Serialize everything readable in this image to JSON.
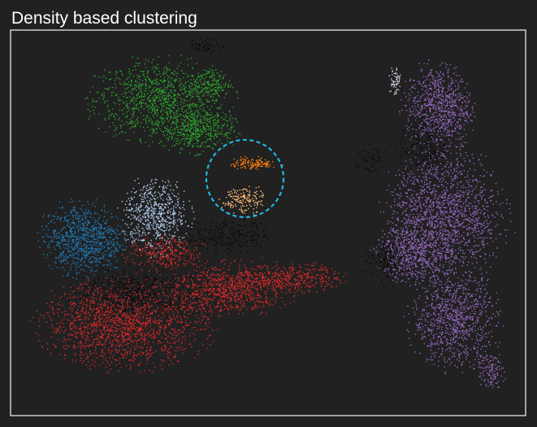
{
  "title": "Density based clustering",
  "colors": {
    "background": "#212121",
    "frame": "#e8e8e8",
    "highlight_circle": "#1fb7e0",
    "noise": "#0a0a0a"
  },
  "chart_data": {
    "type": "scatter",
    "title": "Density based clustering",
    "xlabel": "",
    "ylabel": "",
    "axes_ticks": false,
    "grid": false,
    "legend": "none",
    "noise_color": "#0a0a0a",
    "series": [
      {
        "color": "#2ca02c",
        "blobs": [
          {
            "cx": 0.29,
            "cy": 0.82,
            "rx": 0.14,
            "ry": 0.11,
            "n": 1100
          },
          {
            "cx": 0.36,
            "cy": 0.74,
            "rx": 0.08,
            "ry": 0.06,
            "n": 450
          },
          {
            "cx": 0.39,
            "cy": 0.86,
            "rx": 0.04,
            "ry": 0.04,
            "n": 150
          }
        ]
      },
      {
        "color": "#1f77b4",
        "blobs": [
          {
            "cx": 0.14,
            "cy": 0.46,
            "rx": 0.085,
            "ry": 0.1,
            "n": 900
          }
        ]
      },
      {
        "color": "#aec7e8",
        "blobs": [
          {
            "cx": 0.28,
            "cy": 0.52,
            "rx": 0.07,
            "ry": 0.1,
            "n": 650
          }
        ]
      },
      {
        "color": "#ff7f0e",
        "blobs": [
          {
            "cx": 0.47,
            "cy": 0.655,
            "rx": 0.05,
            "ry": 0.018,
            "n": 130
          }
        ]
      },
      {
        "color": "#ffbb78",
        "blobs": [
          {
            "cx": 0.45,
            "cy": 0.56,
            "rx": 0.045,
            "ry": 0.04,
            "n": 170
          }
        ]
      },
      {
        "color": "#d62728",
        "blobs": [
          {
            "cx": 0.22,
            "cy": 0.24,
            "rx": 0.17,
            "ry": 0.12,
            "n": 1700
          },
          {
            "cx": 0.42,
            "cy": 0.33,
            "rx": 0.13,
            "ry": 0.07,
            "n": 850
          },
          {
            "cx": 0.55,
            "cy": 0.36,
            "rx": 0.1,
            "ry": 0.04,
            "n": 350
          },
          {
            "cx": 0.3,
            "cy": 0.42,
            "rx": 0.08,
            "ry": 0.05,
            "n": 300
          }
        ]
      },
      {
        "color": "#9467bd",
        "blobs": [
          {
            "cx": 0.83,
            "cy": 0.8,
            "rx": 0.07,
            "ry": 0.12,
            "n": 800
          },
          {
            "cx": 0.84,
            "cy": 0.52,
            "rx": 0.12,
            "ry": 0.18,
            "n": 1600
          },
          {
            "cx": 0.86,
            "cy": 0.25,
            "rx": 0.09,
            "ry": 0.13,
            "n": 900
          },
          {
            "cx": 0.78,
            "cy": 0.42,
            "rx": 0.08,
            "ry": 0.08,
            "n": 500
          },
          {
            "cx": 0.93,
            "cy": 0.12,
            "rx": 0.03,
            "ry": 0.05,
            "n": 120
          }
        ]
      },
      {
        "color": "#c9bfd0",
        "blobs": [
          {
            "cx": 0.745,
            "cy": 0.87,
            "rx": 0.012,
            "ry": 0.045,
            "n": 70
          }
        ]
      },
      {
        "color": "#0a0a0a",
        "blobs": [
          {
            "cx": 0.24,
            "cy": 0.32,
            "rx": 0.12,
            "ry": 0.07,
            "n": 600
          },
          {
            "cx": 0.42,
            "cy": 0.47,
            "rx": 0.09,
            "ry": 0.05,
            "n": 300
          },
          {
            "cx": 0.38,
            "cy": 0.96,
            "rx": 0.04,
            "ry": 0.02,
            "n": 70
          },
          {
            "cx": 0.73,
            "cy": 0.4,
            "rx": 0.05,
            "ry": 0.06,
            "n": 180
          },
          {
            "cx": 0.7,
            "cy": 0.66,
            "rx": 0.03,
            "ry": 0.05,
            "n": 70
          },
          {
            "cx": 0.8,
            "cy": 0.7,
            "rx": 0.05,
            "ry": 0.1,
            "n": 250
          }
        ]
      }
    ],
    "highlight": {
      "cx": 0.455,
      "cy": 0.615,
      "r": 0.075
    }
  }
}
